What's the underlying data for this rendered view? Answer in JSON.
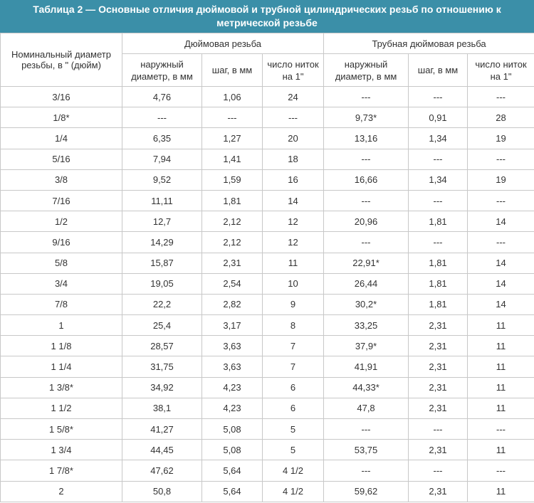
{
  "title": "Таблица 2 — Основные отличия дюймовой и трубной цилиндрических резьб по отношению к метрической резьбе",
  "table": {
    "header": {
      "nominal": "Номинальный диаметр резьбы, в \" (дюйм)",
      "group_1": "Дюймовая резьба",
      "group_2": "Трубная дюймовая резьба",
      "columns": [
        "наружный диаметр, в мм",
        "шаг, в мм",
        "число ниток на 1\"",
        "наружный диаметр, в мм",
        "шаг, в мм",
        "число ниток на 1\""
      ]
    },
    "rows": [
      [
        "3/16",
        "4,76",
        "1,06",
        "24",
        "---",
        "---",
        "---"
      ],
      [
        "1/8*",
        "---",
        "---",
        "---",
        "9,73*",
        "0,91",
        "28"
      ],
      [
        "1/4",
        "6,35",
        "1,27",
        "20",
        "13,16",
        "1,34",
        "19"
      ],
      [
        "5/16",
        "7,94",
        "1,41",
        "18",
        "---",
        "---",
        "---"
      ],
      [
        "3/8",
        "9,52",
        "1,59",
        "16",
        "16,66",
        "1,34",
        "19"
      ],
      [
        "7/16",
        "11,11",
        "1,81",
        "14",
        "---",
        "---",
        "---"
      ],
      [
        "1/2",
        "12,7",
        "2,12",
        "12",
        "20,96",
        "1,81",
        "14"
      ],
      [
        "9/16",
        "14,29",
        "2,12",
        "12",
        "---",
        "---",
        "---"
      ],
      [
        "5/8",
        "15,87",
        "2,31",
        "11",
        "22,91*",
        "1,81",
        "14"
      ],
      [
        "3/4",
        "19,05",
        "2,54",
        "10",
        "26,44",
        "1,81",
        "14"
      ],
      [
        "7/8",
        "22,2",
        "2,82",
        "9",
        "30,2*",
        "1,81",
        "14"
      ],
      [
        "1",
        "25,4",
        "3,17",
        "8",
        "33,25",
        "2,31",
        "11"
      ],
      [
        "1 1/8",
        "28,57",
        "3,63",
        "7",
        "37,9*",
        "2,31",
        "11"
      ],
      [
        "1 1/4",
        "31,75",
        "3,63",
        "7",
        "41,91",
        "2,31",
        "11"
      ],
      [
        "1 3/8*",
        "34,92",
        "4,23",
        "6",
        "44,33*",
        "2,31",
        "11"
      ],
      [
        "1 1/2",
        "38,1",
        "4,23",
        "6",
        "47,8",
        "2,31",
        "11"
      ],
      [
        "1 5/8*",
        "41,27",
        "5,08",
        "5",
        "---",
        "---",
        "---"
      ],
      [
        "1 3/4",
        "44,45",
        "5,08",
        "5",
        "53,75",
        "2,31",
        "11"
      ],
      [
        "1 7/8*",
        "47,62",
        "5,64",
        "4 1/2",
        "---",
        "---",
        "---"
      ],
      [
        "2",
        "50,8",
        "5,64",
        "4 1/2",
        "59,62",
        "2,31",
        "11"
      ]
    ]
  }
}
